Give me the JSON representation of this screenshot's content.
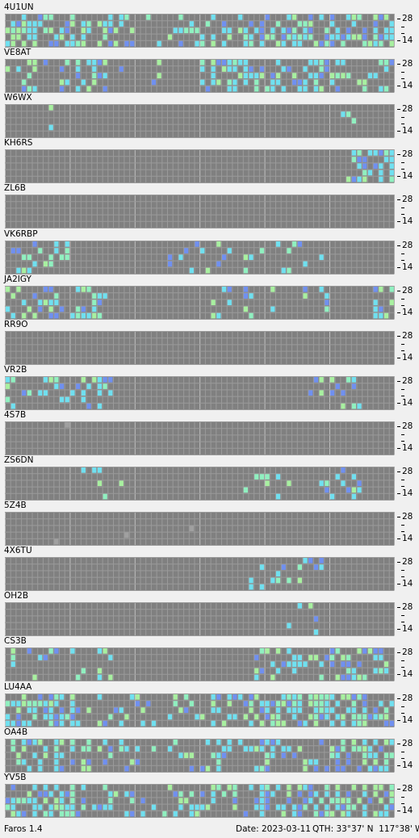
{
  "app": {
    "name": "Faros 1.4"
  },
  "status": {
    "date": "Date: 2023-03-11",
    "qth": "QTH: 33°37' N  117°38' W"
  },
  "axis": {
    "top_label": "28",
    "bottom_label": "14"
  },
  "colors": {
    "background": "#f0f0f0",
    "cell": "#808080",
    "grid": "#9a9a9a",
    "hour_grid": "#c0c0c0",
    "gray_signal": "#a0a0a0",
    "blue_signal": "#7090f0",
    "cyan_signal": "#70e0f0",
    "mint_signal": "#90f0c0",
    "green_signal": "#a8f0a0"
  },
  "grid": {
    "columns": 72,
    "rows": 5,
    "columns_per_hour": 12
  },
  "beacons": [
    {
      "callsign": "4U1UN",
      "activity": "high-wide"
    },
    {
      "callsign": "VE8AT",
      "activity": "high-split"
    },
    {
      "callsign": "W6WX",
      "activity": "sparse-low"
    },
    {
      "callsign": "KH6RS",
      "activity": "late-block"
    },
    {
      "callsign": "ZL6B",
      "activity": "none"
    },
    {
      "callsign": "VK6RBP",
      "activity": "early-scatter"
    },
    {
      "callsign": "JA2IGY",
      "activity": "early-late"
    },
    {
      "callsign": "RR9O",
      "activity": "none"
    },
    {
      "callsign": "VR2B",
      "activity": "early-mid"
    },
    {
      "callsign": "4S7B",
      "activity": "single-gray"
    },
    {
      "callsign": "ZS6DN",
      "activity": "mid-scatter"
    },
    {
      "callsign": "5Z4B",
      "activity": "gray-dots"
    },
    {
      "callsign": "4X6TU",
      "activity": "mid-small"
    },
    {
      "callsign": "OH2B",
      "activity": "mid-tiny"
    },
    {
      "callsign": "CS3B",
      "activity": "mid-late"
    },
    {
      "callsign": "LU4AA",
      "activity": "high-wide"
    },
    {
      "callsign": "OA4B",
      "activity": "wide-medium"
    },
    {
      "callsign": "YV5B",
      "activity": "high-wide"
    }
  ]
}
